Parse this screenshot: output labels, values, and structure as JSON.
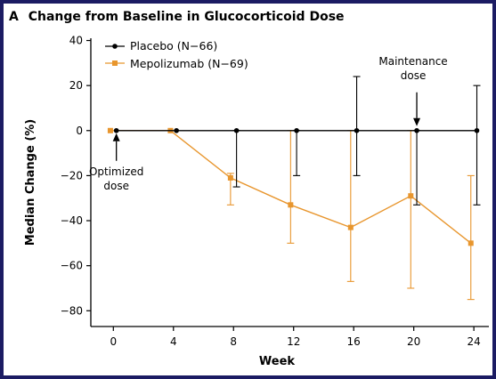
{
  "chart_data": {
    "type": "line",
    "panel_letter": "A",
    "title": "Change from Baseline in Glucocorticoid Dose",
    "xlabel": "Week",
    "ylabel": "Median Change (%)",
    "xlim": [
      -1.5,
      25
    ],
    "ylim": [
      -87,
      41
    ],
    "xticks": [
      0,
      4,
      8,
      12,
      16,
      20,
      24
    ],
    "yticks": [
      -80,
      -60,
      -40,
      -20,
      0,
      20,
      40
    ],
    "xtick_labels": [
      "0",
      "4",
      "8",
      "12",
      "16",
      "20",
      "24"
    ],
    "ytick_labels": [
      "−80",
      "−60",
      "−40",
      "−20",
      "0",
      "20",
      "40"
    ],
    "legend_position": "top-left",
    "series": [
      {
        "name": "Placebo (N−66)",
        "color": "#000000",
        "marker": "circle",
        "x": [
          0.2,
          4.2,
          8.2,
          12.2,
          16.2,
          20.2,
          24.2
        ],
        "y": [
          0,
          0,
          0,
          0,
          0,
          0,
          0
        ],
        "err_low": [
          0,
          0,
          -25,
          -20,
          -20,
          -33,
          -33
        ],
        "err_high": [
          0,
          0,
          0,
          0,
          24,
          0,
          20
        ]
      },
      {
        "name": "Mepolizumab (N−69)",
        "color": "#e8962e",
        "marker": "square",
        "x": [
          -0.2,
          3.8,
          7.8,
          11.8,
          15.8,
          19.8,
          23.8
        ],
        "y": [
          0,
          0,
          -21,
          -33,
          -43,
          -29,
          -50
        ],
        "err_low": [
          0,
          0,
          -33,
          -50,
          -67,
          -70,
          -75
        ],
        "err_high": [
          0,
          0,
          -19,
          0,
          0,
          0,
          -20
        ]
      }
    ],
    "annotations": [
      {
        "lines": [
          "Optimized",
          "dose"
        ],
        "x": 0.2,
        "y": 0
      },
      {
        "lines": [
          "Maintenance",
          "dose"
        ],
        "x": 20.2,
        "y": 0
      }
    ]
  }
}
